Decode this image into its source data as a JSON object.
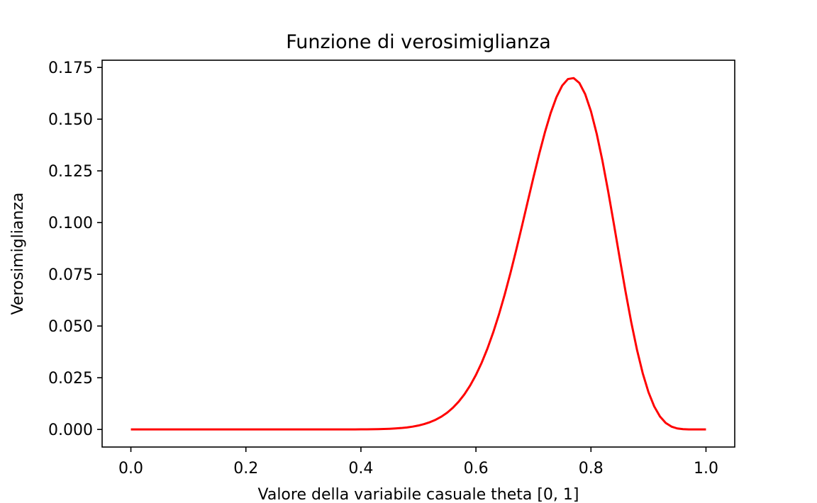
{
  "chart_data": {
    "type": "line",
    "title": "Funzione di verosimiglianza",
    "xlabel": "Valore della variabile casuale theta [0, 1]",
    "ylabel": "Verosimiglianza",
    "xlim": [
      -0.05,
      1.05
    ],
    "ylim": [
      -0.0085,
      0.1785
    ],
    "xticks": [
      0.0,
      0.2,
      0.4,
      0.6,
      0.8,
      1.0
    ],
    "xtick_labels": [
      "0.0",
      "0.2",
      "0.4",
      "0.6",
      "0.8",
      "1.0"
    ],
    "yticks": [
      0.0,
      0.025,
      0.05,
      0.075,
      0.1,
      0.125,
      0.15,
      0.175
    ],
    "ytick_labels": [
      "0.000",
      "0.025",
      "0.050",
      "0.075",
      "0.100",
      "0.125",
      "0.150",
      "0.175"
    ],
    "grid": false,
    "series": [
      {
        "color": "#ff0000",
        "model": {
          "n": 30,
          "k": 23,
          "points": 101
        },
        "x": [
          0.0,
          0.4,
          0.5,
          0.55,
          0.6,
          0.65,
          0.7,
          0.75,
          0.767,
          0.8,
          0.85,
          0.9,
          0.95,
          1.0
        ],
        "y": [
          0.0,
          0.0003,
          0.0019,
          0.0083,
          0.0255,
          0.0611,
          0.1103,
          0.1593,
          0.1697,
          0.1523,
          0.0812,
          0.0202,
          0.0011,
          0.0
        ]
      }
    ]
  }
}
